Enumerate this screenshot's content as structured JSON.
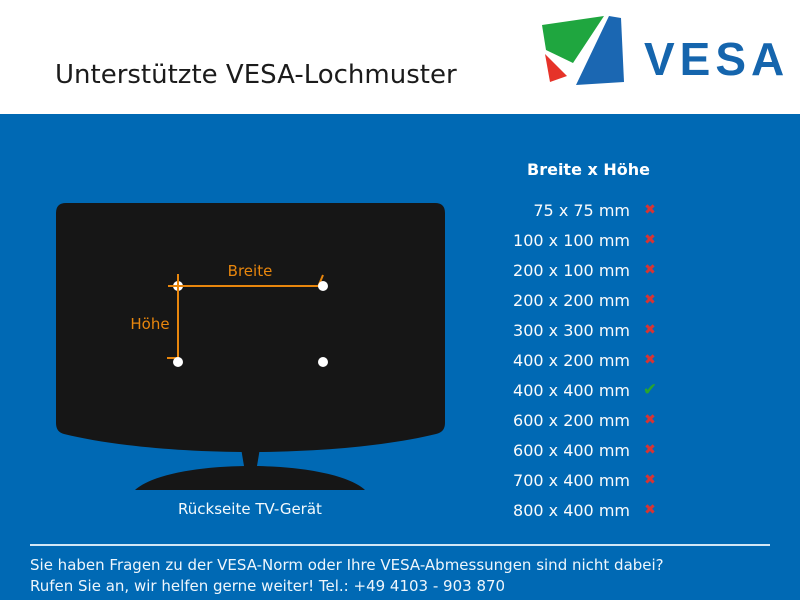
{
  "header": {
    "title": "Unterstützte VESA-Lochmuster"
  },
  "logo": {
    "wordmark": "VESA",
    "colors": {
      "green": "#1fa63f",
      "red": "#e63329",
      "blue": "#1b67b2",
      "wordmark_blue": "#1565ad"
    }
  },
  "diagram": {
    "width_label": "Breite",
    "height_label": "Höhe",
    "caption": "Rückseite TV-Gerät",
    "accent": "#e8860d",
    "hole_color": "#ffffff",
    "tv_color": "#161616"
  },
  "table": {
    "header": "Breite x Höhe",
    "cross_icon": "✖",
    "check_icon": "✔",
    "cross_color": "#d63434",
    "check_color": "#2aa52d",
    "rows": [
      {
        "size": "75 x 75 mm",
        "supported": false
      },
      {
        "size": "100 x 100 mm",
        "supported": false
      },
      {
        "size": "200 x 100 mm",
        "supported": false
      },
      {
        "size": "200 x 200 mm",
        "supported": false
      },
      {
        "size": "300 x 300 mm",
        "supported": false
      },
      {
        "size": "400 x 200 mm",
        "supported": false
      },
      {
        "size": "400 x 400 mm",
        "supported": true
      },
      {
        "size": "600 x 200 mm",
        "supported": false
      },
      {
        "size": "600 x 400 mm",
        "supported": false
      },
      {
        "size": "700 x 400 mm",
        "supported": false
      },
      {
        "size": "800 x 400 mm",
        "supported": false
      }
    ]
  },
  "footer": {
    "line1": "Sie haben Fragen zu der VESA-Norm oder Ihre VESA-Abmessungen sind nicht dabei?",
    "line2": "Rufen Sie an, wir helfen gerne weiter! Tel.: +49 4103 - 903 870"
  },
  "colors": {
    "background": "#0069b4",
    "header_band": "#ffffff",
    "footer_rule": "#d2e7f6"
  }
}
